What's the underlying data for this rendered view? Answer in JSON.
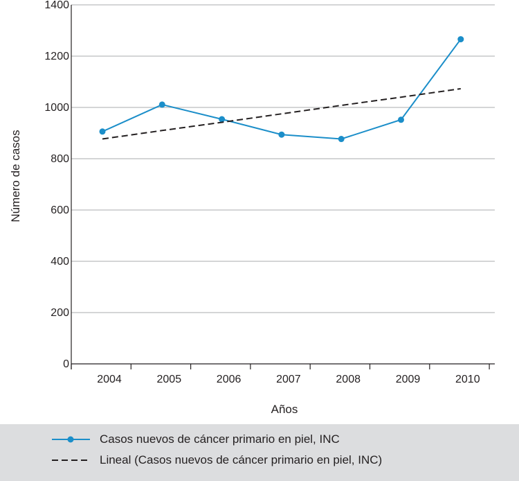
{
  "chart_data": {
    "type": "line",
    "title": "",
    "xlabel": "Años",
    "ylabel": "Número de casos",
    "categories": [
      "2004",
      "2005",
      "2006",
      "2007",
      "2008",
      "2009",
      "2010"
    ],
    "ylim": [
      0,
      1400
    ],
    "yticks": [
      "0",
      "200",
      "400",
      "600",
      "800",
      "1000",
      "1200",
      "1400"
    ],
    "grid": true,
    "legend_position": "bottom",
    "series": [
      {
        "name": "Casos nuevos de cáncer primario en piel, INC",
        "values": [
          906,
          1011,
          954,
          894,
          877,
          952,
          1266
        ],
        "color": "#1b8ec9",
        "style": "solid-markers"
      },
      {
        "name": "Lineal (Casos nuevos de cáncer primario en piel, INC)",
        "values": [
          877,
          910,
          942,
          975,
          1008,
          1040,
          1073
        ],
        "color": "#231f20",
        "style": "dashed"
      }
    ]
  },
  "colors": {
    "grid": "#c6c7c9",
    "legend_background": "#dcdddf"
  }
}
